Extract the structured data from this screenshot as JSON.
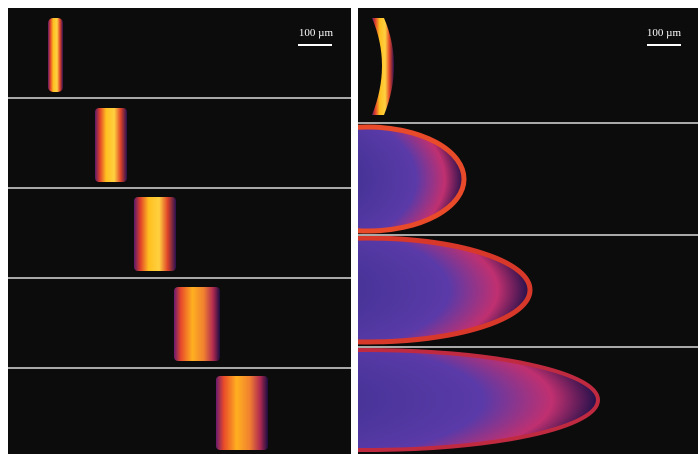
{
  "left_panel": {
    "scale_bar_label": "100 µm"
  },
  "right_panel": {
    "scale_bar_label": "100 µm"
  }
}
